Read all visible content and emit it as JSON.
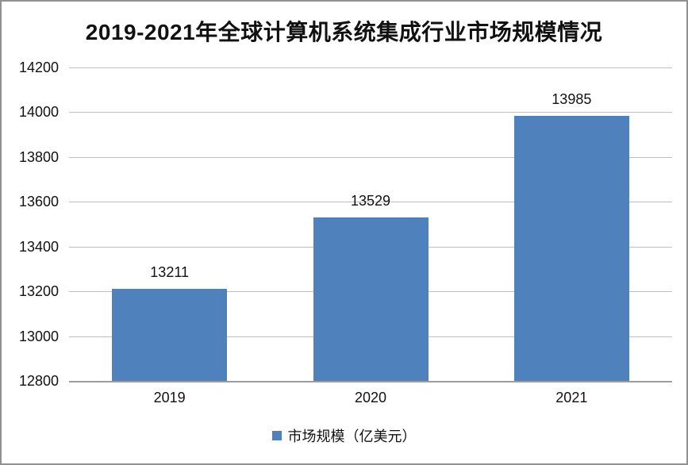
{
  "chart_data": {
    "type": "bar",
    "title": "2019-2021年全球计算机系统集成行业市场规模情况",
    "categories": [
      "2019",
      "2020",
      "2021"
    ],
    "series": [
      {
        "name": "市场规模（亿美元）",
        "values": [
          13211,
          13529,
          13985
        ]
      }
    ],
    "values": [
      13211,
      13529,
      13985
    ],
    "data_labels": [
      "13211",
      "13529",
      "13985"
    ],
    "xlabel": "",
    "ylabel": "",
    "ylim": [
      12800,
      14200
    ],
    "yticks": [
      12800,
      13000,
      13200,
      13400,
      13600,
      13800,
      14000,
      14200
    ],
    "grid": true,
    "legend_position": "bottom",
    "legend_label": "市场规模（亿美元）",
    "colors": {
      "bar": "#4F81BD",
      "gridline": "#bfbfbf",
      "axis_line": "#9d9d9d",
      "text": "#111111",
      "border": "#919191",
      "background": "#ffffff"
    }
  }
}
